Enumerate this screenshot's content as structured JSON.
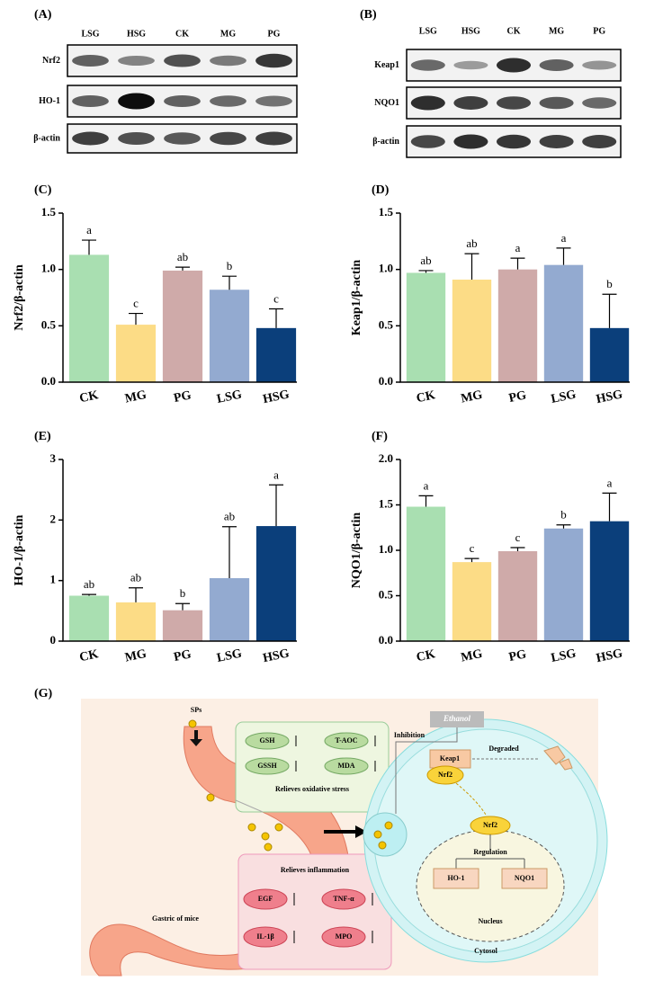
{
  "blots": [
    {
      "panel": "(A)",
      "lanes": [
        "LSG",
        "HSG",
        "CK",
        "MG",
        "PG"
      ],
      "rows": [
        "Nrf2",
        "HO-1",
        "β-actin"
      ]
    },
    {
      "panel": "(B)",
      "lanes": [
        "LSG",
        "HSG",
        "CK",
        "MG",
        "PG"
      ],
      "rows": [
        "Keap1",
        "NQO1",
        "β-actin"
      ]
    }
  ],
  "chart_data": [
    {
      "type": "bar",
      "panel": "(C)",
      "ylabel": "Nrf2/β-actin",
      "categories": [
        "CK",
        "MG",
        "PG",
        "LSG",
        "HSG"
      ],
      "values": [
        1.13,
        0.51,
        0.99,
        0.82,
        0.48
      ],
      "errors": [
        0.13,
        0.1,
        0.03,
        0.12,
        0.17
      ],
      "annotations": [
        "a",
        "c",
        "ab",
        "b",
        "c"
      ],
      "colors": [
        "#a9dfb1",
        "#fcdc86",
        "#cfaaa9",
        "#93aad0",
        "#0b3f7b"
      ],
      "ylim": [
        0,
        1.5
      ],
      "yticks": [
        {
          "value": 0,
          "label": "0.0"
        },
        0.5,
        {
          "value": 1,
          "label": "1.0"
        },
        1.5
      ]
    },
    {
      "type": "bar",
      "panel": "(D)",
      "ylabel": "Keap1/β-actin",
      "categories": [
        "CK",
        "MG",
        "PG",
        "LSG",
        "HSG"
      ],
      "values": [
        0.97,
        0.91,
        1.0,
        1.04,
        0.48
      ],
      "errors": [
        0.02,
        0.23,
        0.1,
        0.15,
        0.3
      ],
      "annotations": [
        "ab",
        "ab",
        "a",
        "a",
        "b"
      ],
      "colors": [
        "#a9dfb1",
        "#fcdc86",
        "#cfaaa9",
        "#93aad0",
        "#0b3f7b"
      ],
      "ylim": [
        0,
        1.5
      ],
      "yticks": [
        {
          "value": 0,
          "label": "0.0"
        },
        0.5,
        {
          "value": 1,
          "label": "1.0"
        },
        1.5
      ]
    },
    {
      "type": "bar",
      "panel": "(E)",
      "ylabel": "HO-1/β-actin",
      "categories": [
        "CK",
        "MG",
        "PG",
        "LSG",
        "HSG"
      ],
      "values": [
        0.75,
        0.64,
        0.51,
        1.04,
        1.9
      ],
      "errors": [
        0.02,
        0.24,
        0.11,
        0.85,
        0.68
      ],
      "annotations": [
        "ab",
        "ab",
        "b",
        "ab",
        "a"
      ],
      "colors": [
        "#a9dfb1",
        "#fcdc86",
        "#cfaaa9",
        "#93aad0",
        "#0b3f7b"
      ],
      "ylim": [
        0,
        3
      ],
      "yticks": [
        0,
        1,
        2,
        3
      ]
    },
    {
      "type": "bar",
      "panel": "(F)",
      "ylabel": "NQO1/β-actin",
      "categories": [
        "CK",
        "MG",
        "PG",
        "LSG",
        "HSG"
      ],
      "values": [
        1.48,
        0.87,
        0.99,
        1.24,
        1.32
      ],
      "errors": [
        0.12,
        0.04,
        0.04,
        0.04,
        0.31
      ],
      "annotations": [
        "a",
        "c",
        "c",
        "b",
        "a"
      ],
      "colors": [
        "#a9dfb1",
        "#fcdc86",
        "#cfaaa9",
        "#93aad0",
        "#0b3f7b"
      ],
      "ylim": [
        0,
        2
      ],
      "yticks": [
        {
          "value": 0,
          "label": "0.0"
        },
        0.5,
        {
          "value": 1,
          "label": "1.0"
        },
        1.5,
        {
          "value": 2,
          "label": "2.0"
        }
      ]
    }
  ],
  "diagram": {
    "panel": "(G)",
    "sps": "SPs",
    "oxidative": [
      "GSH",
      "T-AOC",
      "GSSH",
      "MDA"
    ],
    "oxidative_title": "Relieves oxidative stress",
    "inflammation_title": "Relieves inflammation",
    "inflammation": [
      "EGF",
      "TNF-α",
      "IL-1β",
      "MPO"
    ],
    "organ": "Gastric of mice",
    "ethanol": "Ethanol",
    "inhibition": "Inhibition",
    "keap1": "Keap1",
    "degraded": "Degraded",
    "nrf2": "Nrf2",
    "nrf2_nucleus": "Nrf2",
    "regulation": "Regulation",
    "ho1": "HO-1",
    "nqo1": "NQO1",
    "nucleus": "Nucleus",
    "cytosol": "Cytosol"
  }
}
